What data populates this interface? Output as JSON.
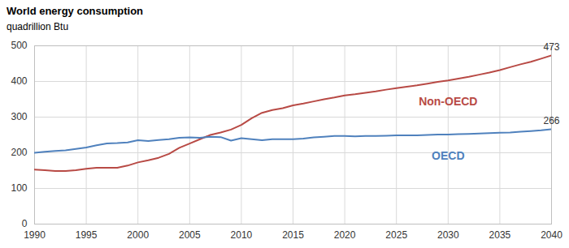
{
  "chart_data": {
    "type": "line",
    "title": "World energy consumption",
    "subtitle": "quadrillion Btu",
    "x": [
      1990,
      1991,
      1992,
      1993,
      1994,
      1995,
      1996,
      1997,
      1998,
      1999,
      2000,
      2001,
      2002,
      2003,
      2004,
      2005,
      2006,
      2007,
      2008,
      2009,
      2010,
      2011,
      2012,
      2013,
      2014,
      2015,
      2016,
      2017,
      2018,
      2019,
      2020,
      2021,
      2022,
      2023,
      2024,
      2025,
      2026,
      2027,
      2028,
      2029,
      2030,
      2031,
      2032,
      2033,
      2034,
      2035,
      2036,
      2037,
      2038,
      2039,
      2040
    ],
    "series": [
      {
        "name": "Non-OECD",
        "color": "#b84a45",
        "values": [
          153,
          151,
          149,
          149,
          151,
          155,
          158,
          158,
          158,
          164,
          173,
          179,
          186,
          197,
          214,
          226,
          238,
          250,
          257,
          265,
          278,
          297,
          312,
          320,
          325,
          333,
          338,
          344,
          350,
          355,
          361,
          364,
          368,
          372,
          377,
          381,
          385,
          389,
          394,
          399,
          403,
          408,
          413,
          419,
          425,
          432,
          440,
          448,
          455,
          464,
          473
        ]
      },
      {
        "name": "OECD",
        "color": "#4f81bd",
        "values": [
          200,
          203,
          205,
          207,
          211,
          215,
          221,
          226,
          227,
          229,
          235,
          233,
          236,
          238,
          242,
          243,
          242,
          245,
          244,
          234,
          241,
          238,
          235,
          238,
          238,
          238,
          240,
          243,
          245,
          247,
          247,
          246,
          247,
          247,
          248,
          249,
          249,
          249,
          250,
          251,
          251,
          252,
          253,
          254,
          255,
          256,
          257,
          259,
          261,
          263,
          266
        ]
      }
    ],
    "annotations": [
      {
        "text": "473",
        "x": 2040,
        "y": 473
      },
      {
        "text": "266",
        "x": 2040,
        "y": 266
      }
    ],
    "xlim": [
      1990,
      2040
    ],
    "xticks": [
      1990,
      1995,
      2000,
      2005,
      2010,
      2015,
      2020,
      2025,
      2030,
      2035,
      2040
    ],
    "ylim": [
      0,
      500
    ],
    "yticks": [
      0,
      100,
      200,
      300,
      400,
      500
    ],
    "grid": true
  }
}
